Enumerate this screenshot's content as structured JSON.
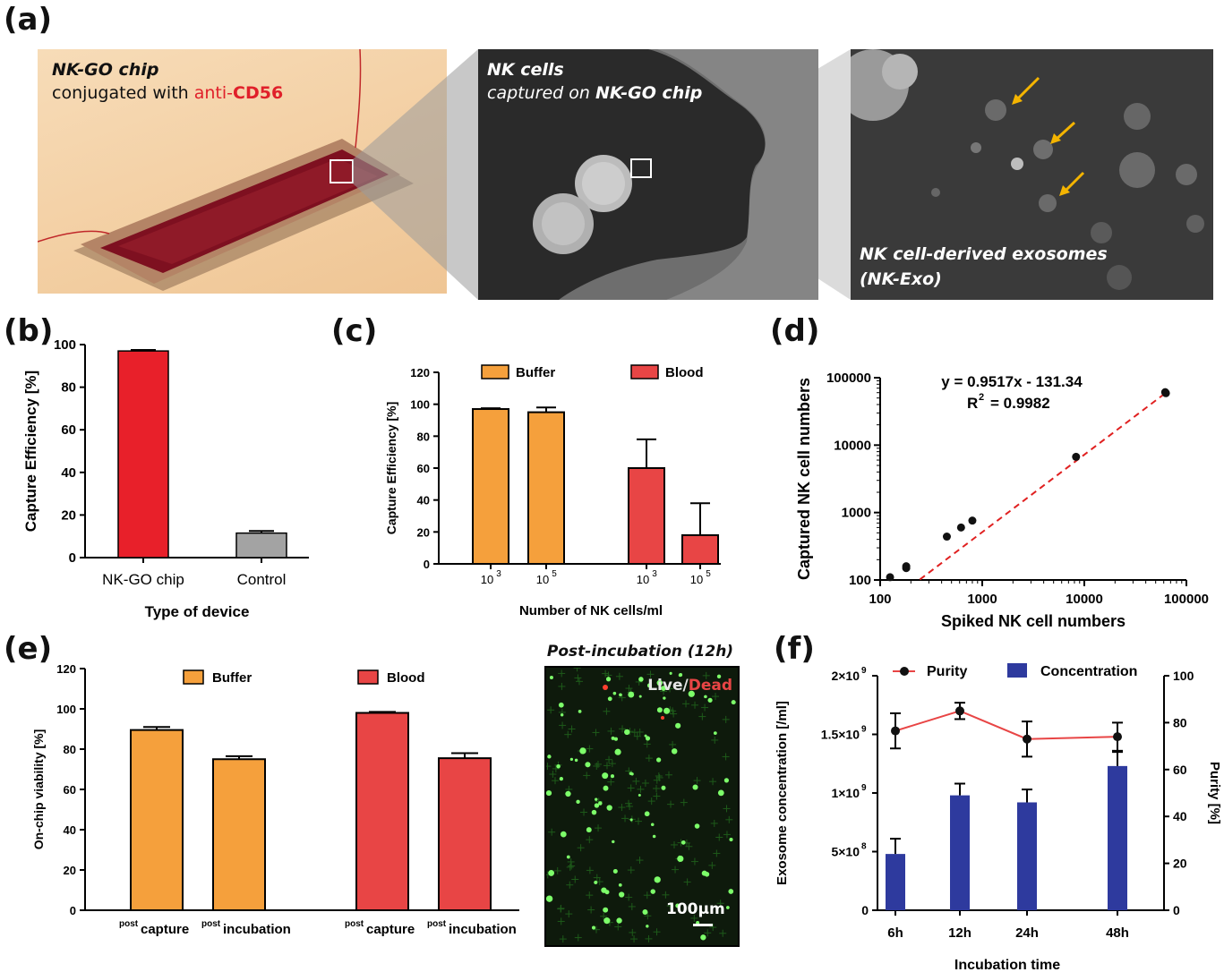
{
  "panels": {
    "a": "(a)",
    "b": "(b)",
    "c": "(c)",
    "d": "(d)",
    "e": "(e)",
    "f": "(f)"
  },
  "photo1": {
    "line1": "NK-GO chip",
    "line2_prefix": "conjugated with ",
    "line2_red_prefix": "anti-",
    "line2_red_bold": "CD56"
  },
  "photo2": {
    "line1": "NK cells",
    "line2_prefix": "captured on ",
    "line2_bold": "NK-GO chip"
  },
  "photo3": {
    "line1": "NK cell-derived exosomes",
    "line2": "(NK-Exo)"
  },
  "micro": {
    "title": "Post-incubation  (12h)",
    "live": "Live",
    "slash": "/",
    "dead": "Dead",
    "scale": "100μm"
  },
  "colors": {
    "red": "#e8202a",
    "orange": "#f5a03c",
    "blood": "#e84545",
    "gray": "#a3a3a3",
    "blue": "#2e3a9e",
    "purity": "#e84545"
  },
  "chart_data": [
    {
      "id": "b",
      "type": "bar",
      "categories": [
        "NK-GO chip",
        "Control"
      ],
      "values": [
        97,
        11.5
      ],
      "errors": [
        0.5,
        1.0
      ],
      "ylabel": "Capture Efficiency [%]",
      "xlabel": "Type of device",
      "ylim": [
        0,
        100
      ],
      "yticks": [
        0,
        20,
        40,
        60,
        80,
        100
      ]
    },
    {
      "id": "c",
      "type": "bar",
      "ylabel": "Capture Efficiency [%]",
      "xlabel": "Number of NK cells/ml",
      "ylim": [
        0,
        120
      ],
      "yticks": [
        0,
        20,
        40,
        60,
        80,
        100,
        120
      ],
      "tick_base": "10",
      "categories": [
        "3",
        "5"
      ],
      "series": [
        {
          "name": "Buffer",
          "values": [
            97,
            95
          ],
          "errors": [
            0.5,
            3
          ]
        },
        {
          "name": "Blood",
          "values": [
            60,
            18
          ],
          "errors": [
            18,
            20
          ]
        }
      ]
    },
    {
      "id": "d",
      "type": "scatter",
      "ylabel": "Captured NK cell numbers",
      "xlabel": "Spiked NK cell numbers",
      "log": true,
      "xlim": [
        100,
        100000
      ],
      "ylim": [
        100,
        100000
      ],
      "ticks": [
        "100",
        "1000",
        "10000",
        "100000"
      ],
      "equation": "y = 0.9517x - 131.34",
      "r2_prefix": "R",
      "r2_sup": "2",
      "r2_value": "= 0.9982",
      "points": [
        [
          125,
          110
        ],
        [
          180,
          150
        ],
        [
          180,
          160
        ],
        [
          450,
          440
        ],
        [
          620,
          600
        ],
        [
          800,
          760
        ],
        [
          8300,
          6700
        ],
        [
          62000,
          61000
        ],
        [
          63000,
          59000
        ]
      ],
      "fit": {
        "slope": 0.9517,
        "intercept": -131.34
      }
    },
    {
      "id": "e",
      "type": "bar",
      "ylabel": "On-chip viability [%]",
      "ylim": [
        0,
        120
      ],
      "yticks": [
        0,
        20,
        40,
        60,
        80,
        100,
        120
      ],
      "categories": [
        {
          "sup": "post",
          "main": "capture"
        },
        {
          "sup": "post",
          "main": "incubation"
        }
      ],
      "series": [
        {
          "name": "Buffer",
          "values": [
            89.5,
            75
          ],
          "errors": [
            1.5,
            1.5
          ]
        },
        {
          "name": "Blood",
          "values": [
            98,
            75.5
          ],
          "errors": [
            0.5,
            2.5
          ]
        }
      ]
    },
    {
      "id": "f",
      "type": "bar+line",
      "categories": [
        "6h",
        "12h",
        "24h",
        "48h"
      ],
      "xlabel": "Incubation time",
      "ylabel_left": "Exosome concentration [/ml]",
      "ylabel_right": "Purity [%]",
      "yticks_left": [
        {
          "v": 0,
          "base": "0",
          "exp": ""
        },
        {
          "v": 500000000,
          "base": "5×10",
          "exp": "8"
        },
        {
          "v": 1000000000,
          "base": "1×10",
          "exp": "9"
        },
        {
          "v": 1500000000,
          "base": "1.5×10",
          "exp": "9"
        },
        {
          "v": 2000000000,
          "base": "2×10",
          "exp": "9"
        }
      ],
      "ylim_left": [
        0,
        2000000000
      ],
      "ylim_right": [
        0,
        100
      ],
      "yticks_right": [
        0,
        20,
        40,
        60,
        80,
        100
      ],
      "series": [
        {
          "name": "Concentration",
          "kind": "bar",
          "values": [
            480000000,
            980000000,
            920000000,
            1230000000
          ],
          "errors": [
            130000000,
            100000000,
            110000000,
            120000000
          ]
        },
        {
          "name": "Purity",
          "kind": "line",
          "values": [
            76.5,
            85,
            73,
            74
          ],
          "errors": [
            7.5,
            3.5,
            7.5,
            6
          ]
        }
      ]
    }
  ]
}
